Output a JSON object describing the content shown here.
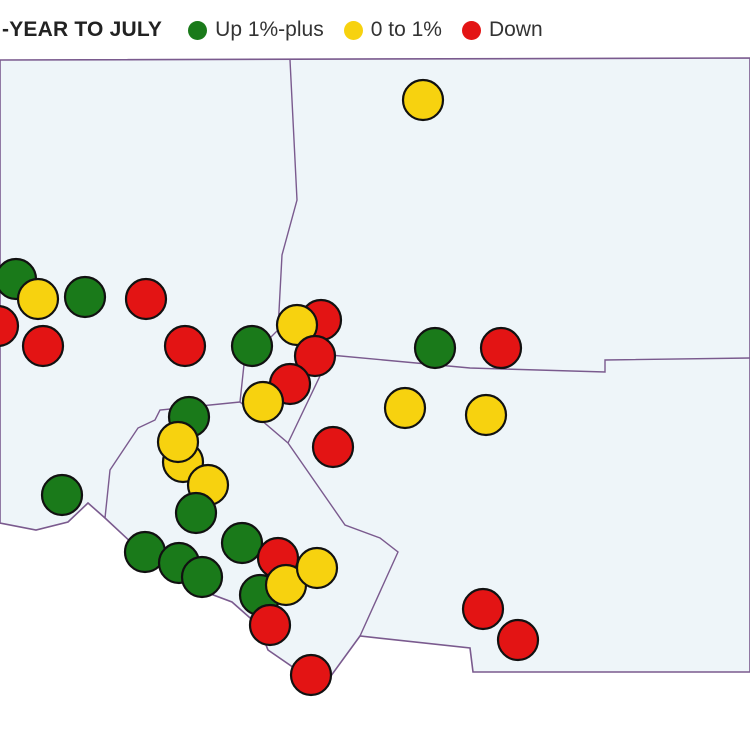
{
  "legend": {
    "title": "-YEAR TO JULY",
    "items": [
      {
        "label": "Up 1%-plus",
        "color": "#1a7a1a"
      },
      {
        "label": "0 to 1%",
        "color": "#f7d20f"
      },
      {
        "label": "Down",
        "color": "#e31414"
      }
    ]
  },
  "map": {
    "background_color": "#eef5f9",
    "border_color": "#7a5a8e"
  }
}
